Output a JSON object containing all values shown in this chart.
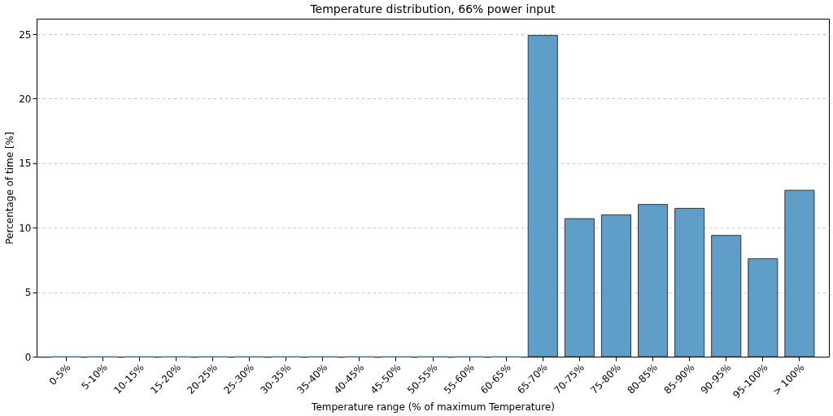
{
  "chart_data": {
    "type": "bar",
    "title": "Temperature distribution, 66% power input",
    "xlabel": "Temperature range (% of maximum Temperature)",
    "ylabel": "Percentage of time [%]",
    "categories": [
      "0-5%",
      "5-10%",
      "10-15%",
      "15-20%",
      "20-25%",
      "25-30%",
      "30-35%",
      "35-40%",
      "40-45%",
      "45-50%",
      "50-55%",
      "55-60%",
      "60-65%",
      "65-70%",
      "70-75%",
      "75-80%",
      "80-85%",
      "85-90%",
      "90-95%",
      "95-100%",
      "> 100%"
    ],
    "values": [
      0,
      0,
      0,
      0,
      0,
      0,
      0,
      0,
      0,
      0,
      0,
      0,
      0,
      24.9,
      10.7,
      11.0,
      11.8,
      11.5,
      9.4,
      7.6,
      12.9
    ],
    "color": "#5f9ec9",
    "ylim": [
      0,
      26.2
    ],
    "yticks": [
      0,
      5,
      10,
      15,
      20,
      25
    ],
    "grid": "y"
  }
}
